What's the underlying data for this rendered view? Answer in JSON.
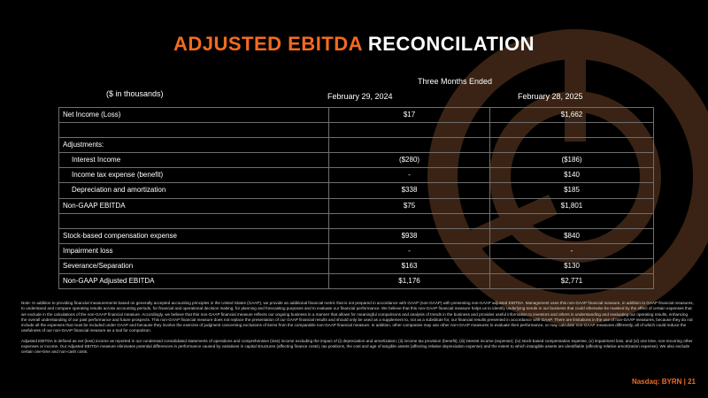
{
  "title": {
    "accent": "ADJUSTED EBITDA",
    "rest": "RECONCILATION"
  },
  "table": {
    "units": "($ in thousands)",
    "period_label": "Three Months Ended",
    "columns": [
      "February 29, 2024",
      "February 28, 2025"
    ],
    "rows": [
      {
        "label": "Net Income (Loss)",
        "v1": "$17",
        "v2": "$1,662",
        "indent": false
      },
      {
        "label": "",
        "v1": "",
        "v2": "",
        "indent": false
      },
      {
        "label": "Adjustments:",
        "v1": "",
        "v2": "",
        "indent": false
      },
      {
        "label": "Interest Income",
        "v1": "($280)",
        "v2": "($186)",
        "indent": true
      },
      {
        "label": "Income tax expense (benefit)",
        "v1": "-",
        "v2": "$140",
        "indent": true
      },
      {
        "label": "Depreciation and amortization",
        "v1": "$338",
        "v2": "$185",
        "indent": true
      },
      {
        "label": "Non-GAAP EBITDA",
        "v1": "$75",
        "v2": "$1,801",
        "indent": false
      },
      {
        "label": "",
        "v1": "",
        "v2": "",
        "indent": false
      },
      {
        "label": "Stock-based compensation expense",
        "v1": "$938",
        "v2": "$840",
        "indent": false
      },
      {
        "label": "Impairment loss",
        "v1": "-",
        "v2": "-",
        "indent": false
      },
      {
        "label": "Severance/Separation",
        "v1": "$163",
        "v2": "$130",
        "indent": false
      },
      {
        "label": "Non-GAAP Adjusted EBITDA",
        "v1": "$1,176",
        "v2": "$2,771",
        "indent": false
      }
    ]
  },
  "notes": [
    "Note: In addition to providing financial measurements based on generally accepted accounting principles in the United States (GAAP), we provide an additional financial metric that is not prepared in accordance with GAAP (non-GAAP) with presenting non-GAAP adjusted EBITDA. Management uses this non-GAAP financial measure, in addition to GAAP financial measures, to understand and compare operating results across accounting periods, for financial and operational decision making, for planning and forecasting purposes and to evaluate our financial performance. We believe that this non-GAAP financial measure helps us to identify underlying trends in our business that could otherwise be masked by the effect of certain expenses that we exclude in the calculations of the non-GAAP financial measure. Accordingly, we believe that this non-GAAP financial measure reflects our ongoing business in a manner that allows for meaningful comparisons and analysis of trends in the business and provides useful information to investors and others in understanding and evaluating our operating results, enhancing the overall understanding of our past performance and future prospects. This non-GAAP financial measure does not replace the presentation of our GAAP financial results and should only be used as a supplement to, not as a substitute for, our financial results presented in accordance with GAAP. There are limitations in the use of non-GAAP measures, because they do not include all the expenses that must be included under GAAP and because they involve the exercise of judgment concerning exclusions of items from the comparable non-GAAP financial measure. In addition, other companies may use other non-GAAP measures to evaluate their performance, or may calculate non-GAAP measures differently, all of which could reduce the usefulness of our non-GAAP financial measure as a tool for comparison.",
    "Adjusted EBITDA is defined as net (loss) income as reported in our condensed consolidated statements of operations and comprehensive (loss) income excluding the impact of (i) depreciation and amortization; (ii) income tax provision (benefit); (iii) interest income (expense); (iv) stock-based compensation expense, (v) impairment loss, and (vi) one time, non-recurring other expenses or income. Our Adjusted EBITDA measure eliminates potential differences in performance caused by variations in capital structures (affecting finance costs), tax positions, the cost and age of tangible assets (affecting relative depreciation expense) and the extent to which intangible assets are identifiable (affecting relative amortization expense). We also exclude certain one-time and non-cash costs."
  ],
  "footer": "Nasdaq: BYRN | 21",
  "colors": {
    "accent": "#f26b21",
    "logo_bg": "#2a1a10"
  },
  "icons": {
    "background_logo": "circular-target-logo"
  }
}
